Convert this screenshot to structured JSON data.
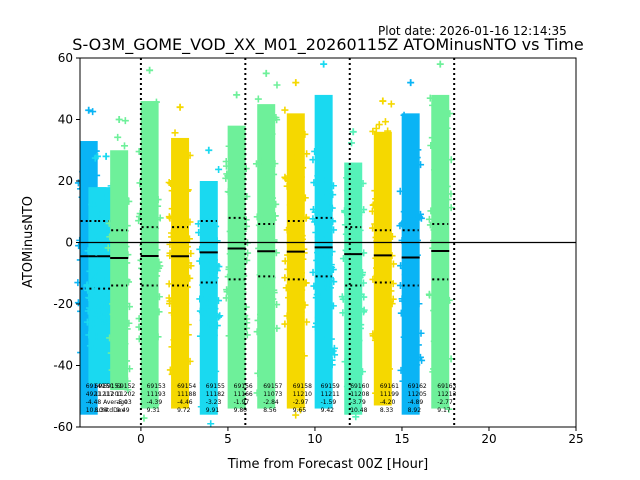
{
  "plot_date": "Plot date: 2026-01-16 12:14:35",
  "chart_data": {
    "type": "scatter",
    "title": "S-O3M_GOME_VOD_XX_M01_20260115Z ATOMinusNTO vs Time",
    "xlabel": "Time from Forecast 00Z [Hour]",
    "ylabel": "ATOMinusNTO",
    "xlim": [
      -3.5,
      25
    ],
    "ylim": [
      -60,
      60
    ],
    "xticks": [
      0,
      5,
      10,
      15,
      20,
      25
    ],
    "yticks": [
      -60,
      -40,
      -20,
      0,
      20,
      40,
      60
    ],
    "hline": 0,
    "vlines": [
      0,
      6,
      12,
      18
    ],
    "colors": {
      "cyan": "#1ad9f0",
      "blue": "#0ab4f5",
      "green": "#6ef09a",
      "yellow": "#f5d800",
      "mint": "#55f2b8"
    },
    "bins": [
      {
        "id": "69149",
        "count": "4921",
        "mean": -4.48,
        "std": 10.1,
        "stats": [
          "-4.48",
          "10.10"
        ],
        "range": "7.68",
        "x": -3.0,
        "color": "blue",
        "top": 43,
        "bottom": -60,
        "upper": 7,
        "lower": -15
      },
      {
        "id": "69150",
        "count": "11217",
        "mean": -4.48,
        "std": 8.34,
        "stats": [
          "",
          ""
        ],
        "range": "8.34",
        "x": -2.5,
        "color": "cyan",
        "top": 28,
        "bottom": -50,
        "upper": 7,
        "lower": -15
      },
      {
        "id": "69151",
        "count": "11201",
        "mean": -4.48,
        "std": 10.1,
        "stats": [
          "Average",
          "StdDev"
        ],
        "range": "",
        "x": -2.0,
        "color": "cyan",
        "top": 28,
        "bottom": -50,
        "upper": 7,
        "lower": -15
      },
      {
        "id": "69152",
        "count": "11202",
        "mean": -5.03,
        "std": 9.49,
        "stats": [
          "-5.03",
          "9.49"
        ],
        "range": "",
        "x": -1.25,
        "color": "green",
        "top": 40,
        "bottom": -52,
        "upper": 4,
        "lower": -14
      },
      {
        "id": "69153",
        "count": "11193",
        "mean": -4.39,
        "std": 9.31,
        "stats": [
          "-4.39",
          "9.31"
        ],
        "range": "",
        "x": 0.5,
        "color": "green",
        "top": 56,
        "bottom": -58,
        "upper": 5,
        "lower": -14
      },
      {
        "id": "69154",
        "count": "11188",
        "mean": -4.46,
        "std": 9.72,
        "stats": [
          "-4.46",
          "9.72"
        ],
        "range": "",
        "x": 2.25,
        "color": "yellow",
        "top": 44,
        "bottom": -58,
        "upper": 5,
        "lower": -14
      },
      {
        "id": "69155",
        "count": "11182",
        "mean": -3.23,
        "std": 9.91,
        "stats": [
          "-3.23",
          "9.91"
        ],
        "range": "",
        "x": 3.9,
        "color": "cyan",
        "top": 30,
        "bottom": -60,
        "upper": 7,
        "lower": -13
      },
      {
        "id": "69156",
        "count": "11166",
        "mean": -1.97,
        "std": 9.8,
        "stats": [
          "-1.97",
          "9.80"
        ],
        "range": "",
        "x": 5.5,
        "color": "green",
        "top": 48,
        "bottom": -58,
        "upper": 8,
        "lower": -12
      },
      {
        "id": "69157",
        "count": "11073",
        "mean": -2.84,
        "std": 8.56,
        "stats": [
          "-2.84",
          "8.56"
        ],
        "range": "",
        "x": 7.2,
        "color": "green",
        "top": 55,
        "bottom": -58,
        "upper": 6,
        "lower": -11
      },
      {
        "id": "69158",
        "count": "11210",
        "mean": -2.97,
        "std": 9.65,
        "stats": [
          "-2.97",
          "9.65"
        ],
        "range": "",
        "x": 8.9,
        "color": "yellow",
        "top": 52,
        "bottom": -58,
        "upper": 7,
        "lower": -12
      },
      {
        "id": "69159",
        "count": "11211",
        "mean": -1.59,
        "std": 9.42,
        "stats": [
          "-1.59",
          "9.42"
        ],
        "range": "",
        "x": 10.5,
        "color": "cyan",
        "top": 58,
        "bottom": -58,
        "upper": 8,
        "lower": -11
      },
      {
        "id": "69160",
        "count": "11208",
        "mean": -3.79,
        "std": 10.48,
        "stats": [
          "-3.79",
          "10.48"
        ],
        "range": "",
        "x": 12.2,
        "color": "mint",
        "top": 36,
        "bottom": -60,
        "upper": 5,
        "lower": -14
      },
      {
        "id": "69161",
        "count": "11199",
        "mean": -4.2,
        "std": 8.33,
        "stats": [
          "-4.20",
          "8.33"
        ],
        "range": "",
        "x": 13.9,
        "color": "yellow",
        "top": 46,
        "bottom": -57,
        "upper": 4,
        "lower": -13
      },
      {
        "id": "69162",
        "count": "11205",
        "mean": -4.89,
        "std": 8.92,
        "stats": [
          "-4.89",
          "8.92"
        ],
        "range": "",
        "x": 15.5,
        "color": "blue",
        "top": 52,
        "bottom": -60,
        "upper": 4,
        "lower": -14
      },
      {
        "id": "69163",
        "count": "11213",
        "mean": -2.77,
        "std": 9.17,
        "stats": [
          "-2.77",
          "9.17"
        ],
        "range": "",
        "x": 17.2,
        "color": "green",
        "top": 58,
        "bottom": -58,
        "upper": 6,
        "lower": -12
      }
    ]
  }
}
